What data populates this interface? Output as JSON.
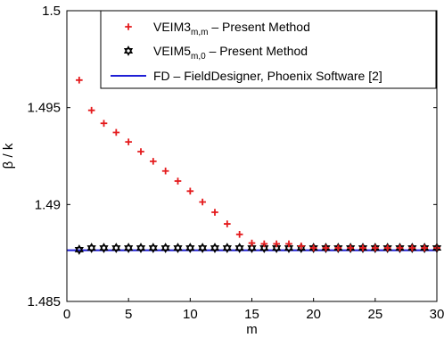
{
  "chart_data": {
    "type": "scatter",
    "xlabel": "m",
    "ylabel": "β / k",
    "xlim": [
      0,
      30
    ],
    "ylim": [
      1.485,
      1.5
    ],
    "xticks": [
      0,
      5,
      10,
      15,
      20,
      25,
      30
    ],
    "xtick_labels": [
      "0",
      "5",
      "10",
      "15",
      "20",
      "25",
      "30"
    ],
    "yticks": [
      1.485,
      1.49,
      1.495,
      1.5
    ],
    "ytick_labels": [
      "1.485",
      "1.49",
      "1.495",
      "1.5"
    ],
    "grid": false,
    "legend_position": "top-right",
    "series": [
      {
        "name": "VEIM3",
        "name_subscript": "m,m",
        "name_suffix": " – Present Method",
        "marker": "plus",
        "color": "#e41a1c",
        "x": [
          1,
          2,
          3,
          4,
          5,
          6,
          7,
          8,
          9,
          10,
          11,
          12,
          13,
          14,
          15,
          16,
          17,
          18,
          19,
          20,
          21,
          22,
          23,
          24,
          25,
          26,
          27,
          28,
          29,
          30
        ],
        "y": [
          1.49642,
          1.49486,
          1.49419,
          1.49372,
          1.49323,
          1.49273,
          1.49223,
          1.49173,
          1.49121,
          1.49069,
          1.49013,
          1.4896,
          1.489,
          1.48846,
          1.48801,
          1.48797,
          1.48797,
          1.48797,
          1.48786,
          1.48776,
          1.48776,
          1.48776,
          1.48776,
          1.48776,
          1.48776,
          1.48776,
          1.48776,
          1.48776,
          1.48776,
          1.48776
        ]
      },
      {
        "name": "VEIM5",
        "name_subscript": "m,0",
        "name_suffix": " – Present Method",
        "marker": "star",
        "color": "#000000",
        "x": [
          1,
          2,
          3,
          4,
          5,
          6,
          7,
          8,
          9,
          10,
          11,
          12,
          13,
          14,
          15,
          16,
          17,
          18,
          19,
          20,
          21,
          22,
          23,
          24,
          25,
          26,
          27,
          28,
          29,
          30
        ],
        "y": [
          1.48767,
          1.48776,
          1.48776,
          1.48776,
          1.48776,
          1.48776,
          1.48776,
          1.48776,
          1.48776,
          1.48776,
          1.48776,
          1.48776,
          1.48776,
          1.48776,
          1.48776,
          1.48776,
          1.48776,
          1.48776,
          1.48776,
          1.48776,
          1.48776,
          1.48776,
          1.48776,
          1.48776,
          1.48776,
          1.48776,
          1.48776,
          1.48776,
          1.48776,
          1.48776
        ]
      },
      {
        "name": "FD – FieldDesigner, Phoenix Software [2]",
        "marker": "line",
        "color": "#1f1fd6",
        "x": [
          0,
          30
        ],
        "y": [
          1.48764,
          1.48764
        ]
      }
    ]
  }
}
